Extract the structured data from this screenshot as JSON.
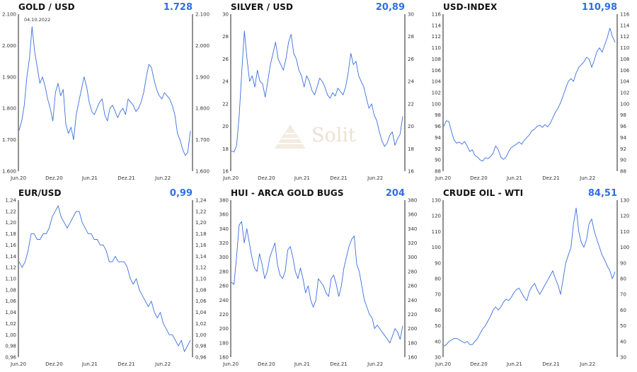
{
  "watermark": {
    "text": "Solit"
  },
  "colors": {
    "line": "#3a6fe0",
    "value": "#2f6fe0",
    "axis": "#222222"
  },
  "chart_data": [
    {
      "type": "line",
      "title": "GOLD / USD",
      "current_value": "1.728",
      "annotation": "04.10.2022",
      "x_ticks": [
        "Jun.20",
        "Dez.20",
        "Jun.21",
        "Dez.21",
        "Jun.22"
      ],
      "y_ticks": [
        "1.600",
        "1.700",
        "1.800",
        "1.900",
        "2.000",
        "2.100"
      ],
      "ylim": [
        1600,
        2100
      ],
      "values": [
        1730,
        1760,
        1810,
        1900,
        1960,
        2060,
        1980,
        1930,
        1880,
        1900,
        1870,
        1830,
        1800,
        1760,
        1850,
        1880,
        1840,
        1860,
        1750,
        1720,
        1740,
        1700,
        1780,
        1820,
        1860,
        1900,
        1870,
        1820,
        1790,
        1780,
        1800,
        1820,
        1830,
        1780,
        1760,
        1800,
        1810,
        1790,
        1770,
        1790,
        1800,
        1780,
        1830,
        1820,
        1810,
        1790,
        1800,
        1820,
        1850,
        1900,
        1940,
        1930,
        1890,
        1860,
        1840,
        1830,
        1850,
        1840,
        1830,
        1810,
        1780,
        1720,
        1700,
        1670,
        1650,
        1660,
        1728
      ]
    },
    {
      "type": "line",
      "title": "SILVER / USD",
      "current_value": "20,89",
      "x_ticks": [
        "Jun.20",
        "Dez.20",
        "Jun.21",
        "Dez.21",
        "Jun.22"
      ],
      "y_ticks": [
        "16",
        "18",
        "20",
        "22",
        "24",
        "26",
        "28",
        "30"
      ],
      "ylim": [
        16,
        30
      ],
      "values": [
        17.8,
        17.7,
        18.3,
        21,
        25,
        28.5,
        26,
        24,
        24.5,
        23.5,
        25,
        24,
        23.8,
        22.6,
        24,
        25.5,
        26.5,
        27.5,
        26,
        25.5,
        25,
        26,
        27.5,
        28.2,
        26.5,
        26,
        25,
        24.5,
        23.5,
        24.5,
        24,
        23.2,
        22.8,
        23.5,
        24.3,
        24,
        23.5,
        22.8,
        22.5,
        23,
        22.7,
        23.4,
        23.1,
        22.8,
        23.5,
        24.8,
        26.5,
        25.5,
        25.8,
        24.5,
        24,
        23.5,
        22.5,
        21.6,
        22,
        21,
        20.5,
        19.5,
        18.7,
        18.2,
        18.5,
        19.2,
        19.5,
        18.3,
        18.9,
        19.3,
        20.89
      ]
    },
    {
      "type": "line",
      "title": "USD-INDEX",
      "current_value": "110,98",
      "x_ticks": [
        "Jun.20",
        "Dez.20",
        "Jun.21",
        "Dez.21",
        "Jun.22"
      ],
      "y_ticks": [
        "88",
        "90",
        "92",
        "94",
        "96",
        "98",
        "100",
        "102",
        "104",
        "106",
        "108",
        "110",
        "112",
        "114",
        "116"
      ],
      "ylim": [
        88,
        116
      ],
      "values": [
        96,
        97,
        96.8,
        95,
        93.5,
        93,
        93.2,
        92.8,
        93.3,
        92.5,
        91.5,
        91.8,
        90.8,
        90.5,
        90,
        89.8,
        90.4,
        90.2,
        90.6,
        91.2,
        92.5,
        91.8,
        90.5,
        90.1,
        90.5,
        91.5,
        92.2,
        92.5,
        92.8,
        93.2,
        92.8,
        93.5,
        94,
        94.5,
        95.2,
        95.5,
        96,
        96.2,
        95.8,
        96.3,
        95.9,
        96.5,
        97.5,
        98.5,
        99.2,
        100.2,
        101.5,
        102.8,
        104,
        104.5,
        104,
        105.5,
        106.5,
        107,
        107.5,
        108.3,
        108,
        106.5,
        107.8,
        109.3,
        110,
        109.2,
        110.5,
        111.8,
        113.5,
        112,
        110.98
      ]
    },
    {
      "type": "line",
      "title": "EUR/USD",
      "current_value": "0,99",
      "x_ticks": [
        "Jun.20",
        "Dez.20",
        "Jun.21",
        "Dez.21",
        "Jun.22"
      ],
      "y_ticks": [
        "0,96",
        "0,98",
        "1,00",
        "1,02",
        "1,04",
        "1,06",
        "1,08",
        "1,10",
        "1,12",
        "1,14",
        "1,16",
        "1,18",
        "1,20",
        "1,22",
        "1,24"
      ],
      "ylim": [
        0.96,
        1.24
      ],
      "values": [
        1.13,
        1.12,
        1.13,
        1.15,
        1.18,
        1.18,
        1.17,
        1.17,
        1.18,
        1.18,
        1.19,
        1.21,
        1.22,
        1.23,
        1.21,
        1.2,
        1.19,
        1.2,
        1.21,
        1.22,
        1.22,
        1.2,
        1.19,
        1.18,
        1.18,
        1.17,
        1.17,
        1.16,
        1.16,
        1.15,
        1.13,
        1.13,
        1.14,
        1.13,
        1.13,
        1.13,
        1.12,
        1.1,
        1.09,
        1.1,
        1.08,
        1.07,
        1.06,
        1.05,
        1.06,
        1.04,
        1.03,
        1.04,
        1.02,
        1.01,
        1.0,
        1.0,
        0.99,
        0.98,
        0.99,
        0.97,
        0.98,
        0.99
      ]
    },
    {
      "type": "line",
      "title": "HUI - ARCA GOLD BUGS",
      "current_value": "204",
      "x_ticks": [
        "Jun.20",
        "Dez.20",
        "Jun.21",
        "Dez.21",
        "Jun.22"
      ],
      "y_ticks": [
        "160",
        "180",
        "200",
        "220",
        "240",
        "260",
        "280",
        "300",
        "320",
        "340",
        "360",
        "380"
      ],
      "ylim": [
        160,
        380
      ],
      "values": [
        265,
        262,
        300,
        345,
        350,
        320,
        340,
        320,
        300,
        285,
        280,
        305,
        290,
        270,
        280,
        300,
        310,
        320,
        290,
        275,
        270,
        280,
        310,
        315,
        300,
        280,
        270,
        285,
        270,
        250,
        260,
        240,
        230,
        240,
        270,
        265,
        260,
        250,
        245,
        270,
        275,
        262,
        245,
        260,
        285,
        300,
        315,
        325,
        330,
        290,
        280,
        260,
        240,
        230,
        220,
        215,
        200,
        205,
        200,
        195,
        190,
        185,
        180,
        190,
        200,
        195,
        185,
        204
      ]
    },
    {
      "type": "line",
      "title": "CRUDE OIL - WTI",
      "current_value": "84,51",
      "x_ticks": [
        "Jun.20",
        "Dez.20",
        "Jun.21",
        "Dez.21",
        "Jun.22"
      ],
      "y_ticks": [
        "30",
        "40",
        "50",
        "60",
        "70",
        "80",
        "90",
        "100",
        "110",
        "120",
        "130"
      ],
      "ylim": [
        30,
        130
      ],
      "values": [
        37,
        38,
        40,
        41,
        42,
        42,
        41,
        40,
        39,
        40,
        38,
        38,
        40,
        42,
        45,
        48,
        50,
        53,
        56,
        60,
        62,
        60,
        62,
        65,
        67,
        66,
        68,
        71,
        73,
        74,
        71,
        68,
        66,
        72,
        75,
        77,
        73,
        70,
        73,
        76,
        79,
        82,
        85,
        80,
        76,
        70,
        80,
        90,
        95,
        100,
        115,
        125,
        110,
        103,
        100,
        105,
        115,
        118,
        110,
        105,
        100,
        95,
        92,
        88,
        85,
        80,
        84.51
      ]
    }
  ]
}
